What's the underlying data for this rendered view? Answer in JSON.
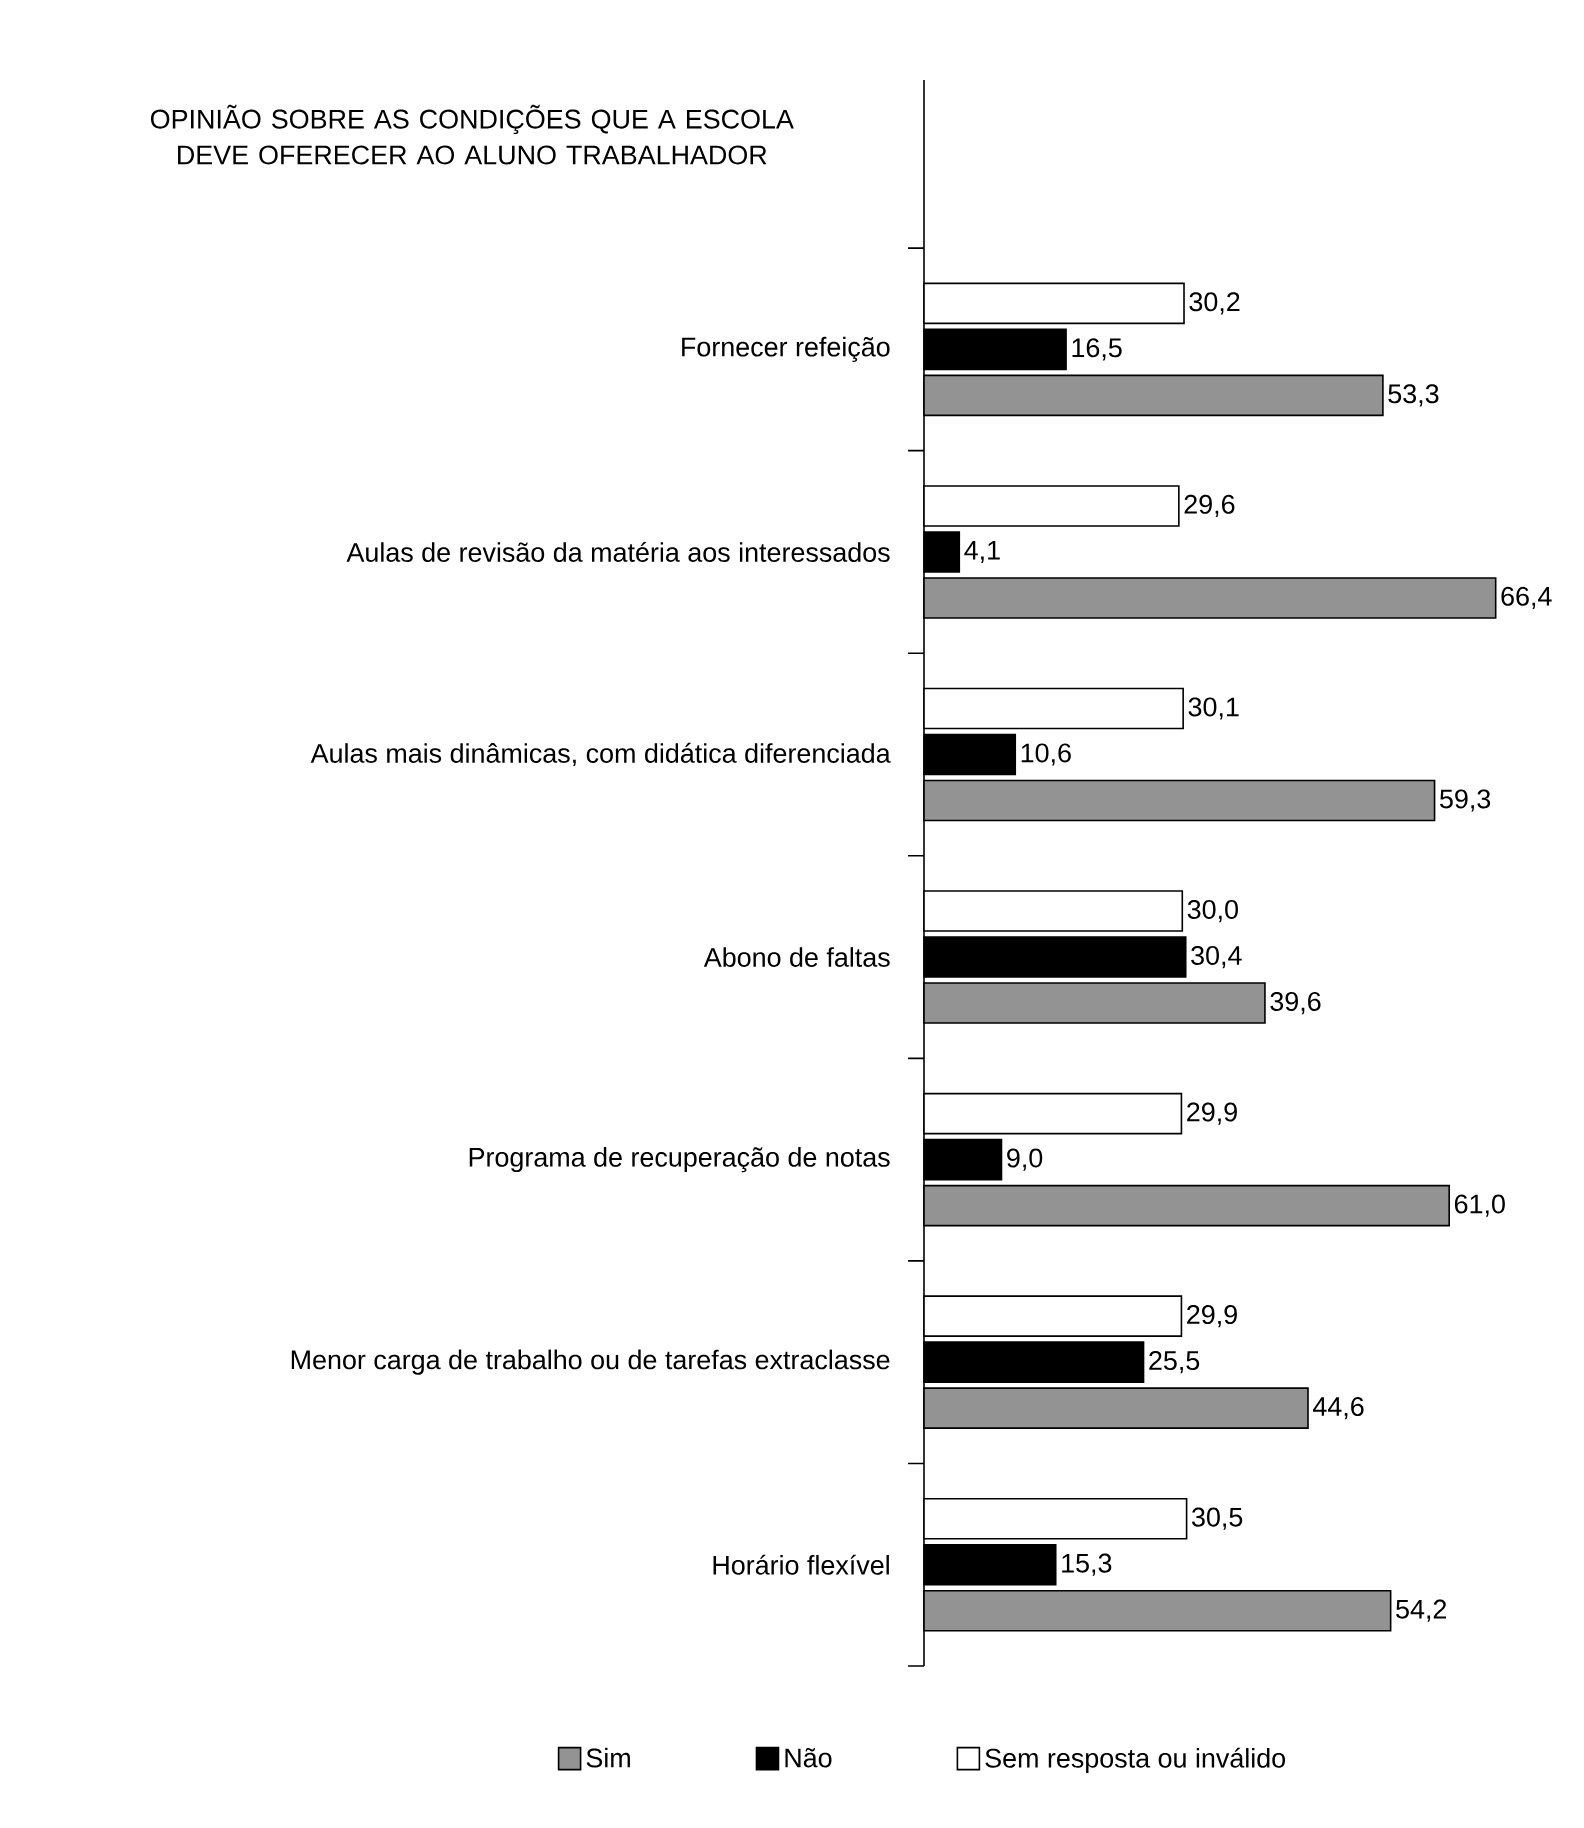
{
  "chart_data": {
    "type": "bar",
    "orientation": "horizontal",
    "title": "OPINIÃO SOBRE AS CONDIÇÕES QUE A ESCOLA DEVE OFERECER AO ALUNO TRABALHADOR",
    "categories": [
      "Fornecer refeição",
      "Aulas de revisão da matéria aos interessados",
      "Aulas mais dinâmicas, com didática diferenciada",
      "Abono de faltas",
      "Programa de recuperação de notas",
      "Menor carga de trabalho ou de tarefas extraclasse",
      "Horário flexível"
    ],
    "series": [
      {
        "name": "Sim",
        "color": "#939393",
        "values": [
          53.3,
          66.4,
          59.3,
          39.6,
          61.0,
          44.6,
          54.2
        ],
        "value_labels": [
          "53,3",
          "66,4",
          "59,3",
          "39,6",
          "61,0",
          "44,6",
          "54,2"
        ]
      },
      {
        "name": "Não",
        "color": "#000000",
        "values": [
          16.5,
          4.1,
          10.6,
          30.4,
          9.0,
          25.5,
          15.3
        ],
        "value_labels": [
          "16,5",
          "4,1",
          "10,6",
          "30,4",
          "9,0",
          "25,5",
          "15,3"
        ]
      },
      {
        "name": "Sem resposta ou inválido",
        "color": "#ffffff",
        "values": [
          30.2,
          29.6,
          30.1,
          30.0,
          29.9,
          29.9,
          30.5
        ],
        "value_labels": [
          "30,2",
          "29,6",
          "30,1",
          "30,0",
          "29,9",
          "29,9",
          "30,5"
        ]
      }
    ],
    "legend": "bottom",
    "data_labels": true
  }
}
